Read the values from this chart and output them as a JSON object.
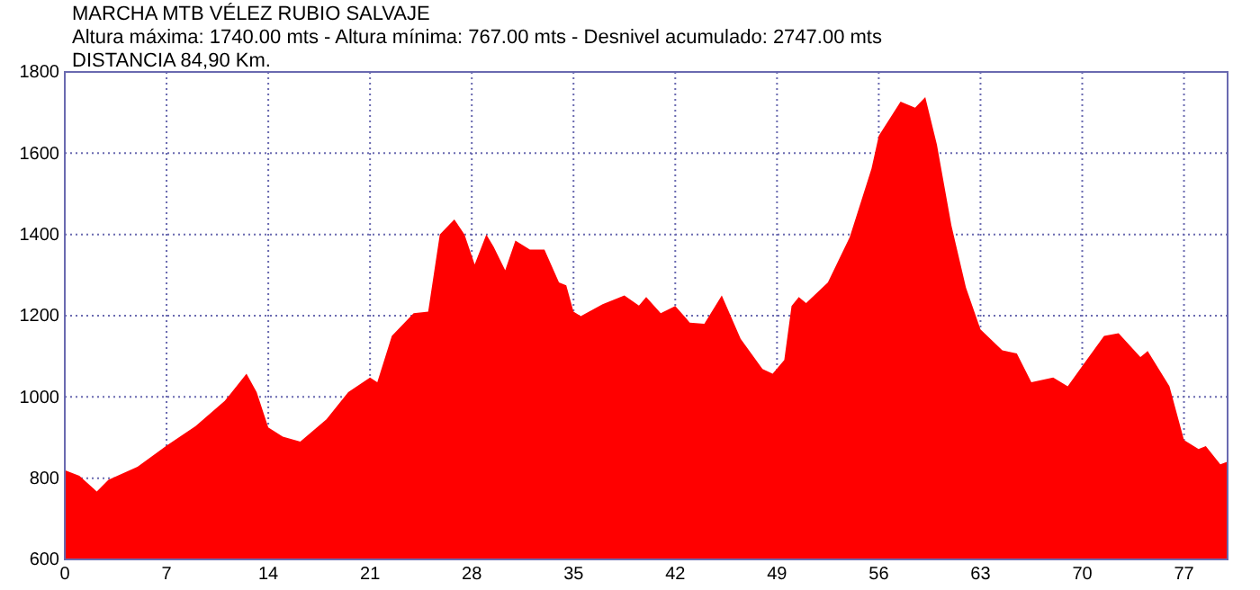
{
  "chart_data": {
    "type": "area",
    "title": "MARCHA MTB VÉLEZ RUBIO SALVAJE",
    "subtitle": "Altura máxima: 1740.00 mts - Altura mínima: 767.00 mts - Desnivel acumulado: 2747.00 mts",
    "annotations": [
      "DISTANCIA 84,90 Km."
    ],
    "x": [
      0,
      1,
      2,
      2.2,
      3,
      5,
      7,
      9,
      11,
      12.5,
      13.2,
      14,
      15,
      16.2,
      18,
      19.5,
      21,
      21.5,
      22.5,
      24,
      25,
      25.8,
      26.8,
      27.5,
      28.2,
      29,
      29.5,
      30.3,
      31,
      32,
      33,
      34,
      34.5,
      35,
      35.5,
      37,
      38.5,
      39.5,
      40,
      41,
      42,
      43,
      44,
      45.2,
      46.5,
      48,
      48.7,
      49.5,
      50,
      50.5,
      51,
      52.5,
      54,
      55.5,
      56,
      57.5,
      58.5,
      59.2,
      60,
      61,
      62,
      63,
      64.5,
      65.5,
      66.5,
      68,
      69,
      70,
      71.5,
      72.5,
      74,
      74.5,
      76,
      77,
      78,
      78.5,
      79.5,
      80
    ],
    "series": [
      {
        "color": "#ff0000",
        "values": [
          820,
          806,
          774,
          767,
          796,
          828,
          880,
          928,
          990,
          1057,
          1012,
          925,
          902,
          890,
          945,
          1012,
          1048,
          1036,
          1150,
          1206,
          1210,
          1400,
          1437,
          1400,
          1326,
          1400,
          1370,
          1312,
          1385,
          1363,
          1363,
          1282,
          1275,
          1210,
          1199,
          1228,
          1250,
          1225,
          1246,
          1206,
          1224,
          1183,
          1180,
          1250,
          1143,
          1069,
          1057,
          1091,
          1224,
          1246,
          1231,
          1282,
          1393,
          1562,
          1643,
          1727,
          1712,
          1738,
          1621,
          1422,
          1269,
          1166,
          1115,
          1107,
          1036,
          1048,
          1026,
          1076,
          1150,
          1157,
          1098,
          1113,
          1026,
          894,
          872,
          879,
          834,
          841
        ]
      }
    ],
    "xlim": [
      0,
      80
    ],
    "xticks": [
      0,
      7,
      14,
      21,
      28,
      35,
      42,
      49,
      56,
      63,
      70,
      77
    ],
    "ylim": [
      600,
      1800
    ],
    "yticks": [
      600,
      800,
      1000,
      1200,
      1400,
      1600,
      1800
    ],
    "grid": true
  }
}
